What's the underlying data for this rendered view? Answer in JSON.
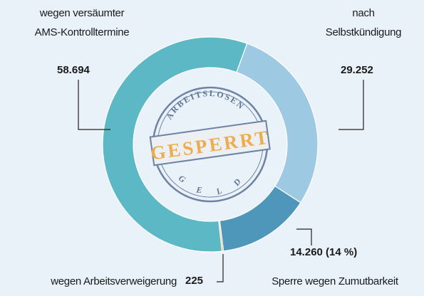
{
  "chart_data": {
    "type": "donut",
    "categories": [
      "nach\nSelbstkündigung",
      "Sperre wegen Zumutbarkeit",
      "wegen Arbeitsverweigerung",
      "wegen versäumter\nAMS-Kontrolltermine"
    ],
    "values": [
      29252,
      14260,
      225,
      58694
    ],
    "value_labels": [
      "29.252",
      "14.260 (14 %)",
      "225",
      "58.694"
    ],
    "colors": [
      "#9ec9e2",
      "#4f97ba",
      "#f0a020",
      "#5db8c5"
    ],
    "stamp": {
      "top": "ARBEITSLOSEN",
      "main": "GESPERRT",
      "bottom": "GELD"
    }
  }
}
